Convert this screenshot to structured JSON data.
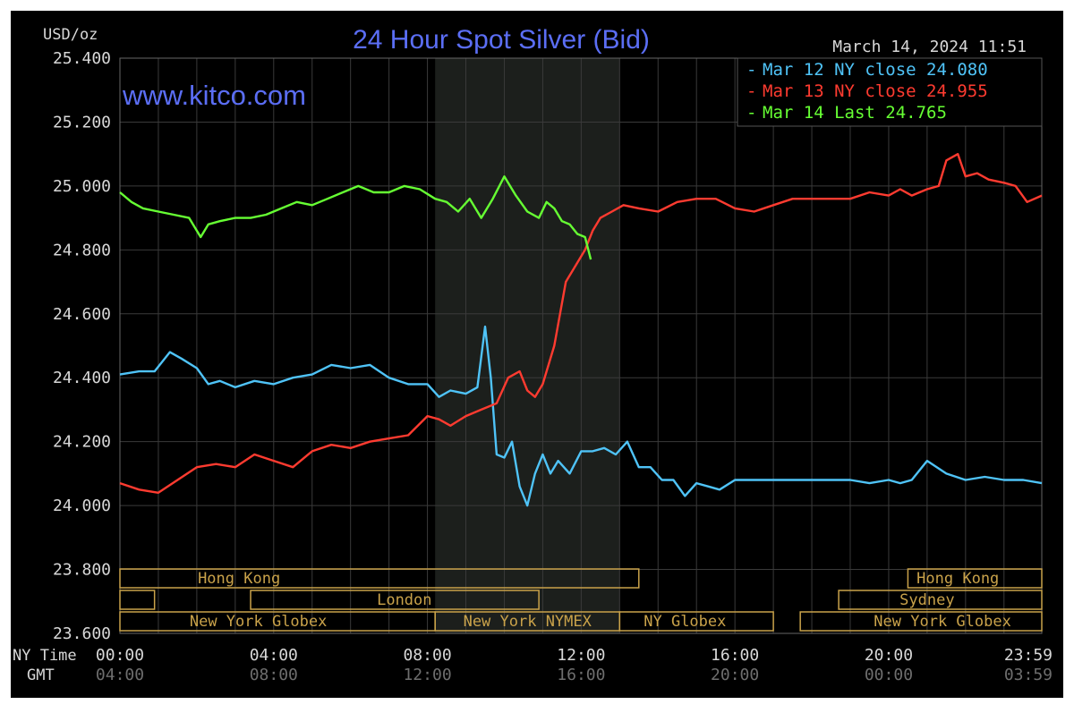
{
  "chart_data": {
    "type": "line",
    "title": "24 Hour Spot Silver (Bid)",
    "watermark": "www.kitco.com",
    "date_time": "March 14, 2024 11:51",
    "ylabel": "USD/oz",
    "ylim": [
      23.6,
      25.4
    ],
    "y_ticks": [
      "25.400",
      "25.200",
      "25.000",
      "24.800",
      "24.600",
      "24.400",
      "24.200",
      "24.000",
      "23.800",
      "23.600"
    ],
    "y_tick_values": [
      25.4,
      25.2,
      25.0,
      24.8,
      24.6,
      24.4,
      24.2,
      24.0,
      23.8,
      23.6
    ],
    "x_row_labels": {
      "ny": "NY Time",
      "gmt": "GMT"
    },
    "x_ticks_ny": [
      "00:00",
      "04:00",
      "08:00",
      "12:00",
      "16:00",
      "20:00",
      "23:59"
    ],
    "x_ticks_gmt": [
      "04:00",
      "08:00",
      "12:00",
      "16:00",
      "20:00",
      "00:00",
      "03:59"
    ],
    "x_tick_hours": [
      0,
      4,
      8,
      12,
      16,
      20,
      23.983
    ],
    "xlim_hours": [
      0,
      23.983
    ],
    "grid": true,
    "legend_position": "top-right",
    "colors": {
      "mar12": "#4fc3f7",
      "mar13": "#ff3b30",
      "mar14": "#66ff33",
      "title": "#5b6ef5",
      "text": "#d8d8d8",
      "session": "#c9a24a"
    },
    "series": [
      {
        "name": "Mar 12 NY close 24.080",
        "color": "#4fc3f7",
        "x": [
          0,
          0.5,
          0.9,
          1.3,
          1.6,
          2.0,
          2.3,
          2.6,
          3.0,
          3.5,
          4.0,
          4.5,
          5.0,
          5.5,
          6.0,
          6.5,
          7.0,
          7.5,
          8.0,
          8.3,
          8.6,
          9.0,
          9.3,
          9.5,
          9.65,
          9.8,
          10.0,
          10.2,
          10.4,
          10.6,
          10.8,
          11.0,
          11.2,
          11.4,
          11.7,
          12.0,
          12.3,
          12.6,
          12.9,
          13.2,
          13.5,
          13.8,
          14.1,
          14.4,
          14.7,
          15.0,
          15.3,
          15.6,
          16.0,
          16.5,
          17.0,
          17.5,
          18.0,
          18.5,
          19.0,
          19.5,
          20.0,
          20.3,
          20.6,
          21.0,
          21.5,
          22.0,
          22.5,
          23.0,
          23.5,
          23.983
        ],
        "y": [
          24.41,
          24.42,
          24.42,
          24.48,
          24.46,
          24.43,
          24.38,
          24.39,
          24.37,
          24.39,
          24.38,
          24.4,
          24.41,
          24.44,
          24.43,
          24.44,
          24.4,
          24.38,
          24.38,
          24.34,
          24.36,
          24.35,
          24.37,
          24.56,
          24.4,
          24.16,
          24.15,
          24.2,
          24.06,
          24.0,
          24.1,
          24.16,
          24.1,
          24.14,
          24.1,
          24.17,
          24.17,
          24.18,
          24.16,
          24.2,
          24.12,
          24.12,
          24.08,
          24.08,
          24.03,
          24.07,
          24.06,
          24.05,
          24.08,
          24.08,
          24.08,
          24.08,
          24.08,
          24.08,
          24.08,
          24.07,
          24.08,
          24.07,
          24.08,
          24.14,
          24.1,
          24.08,
          24.09,
          24.08,
          24.08,
          24.07
        ]
      },
      {
        "name": "Mar 13 NY close 24.955",
        "color": "#ff3b30",
        "x": [
          0,
          0.5,
          1.0,
          1.5,
          2.0,
          2.5,
          3.0,
          3.5,
          4.0,
          4.5,
          5.0,
          5.5,
          6.0,
          6.5,
          7.0,
          7.5,
          8.0,
          8.3,
          8.6,
          9.0,
          9.4,
          9.8,
          10.1,
          10.4,
          10.6,
          10.8,
          11.0,
          11.3,
          11.6,
          11.9,
          12.1,
          12.3,
          12.5,
          12.8,
          13.1,
          13.5,
          14.0,
          14.5,
          15.0,
          15.5,
          16.0,
          16.5,
          17.0,
          17.5,
          18.0,
          18.5,
          19.0,
          19.5,
          20.0,
          20.3,
          20.6,
          21.0,
          21.3,
          21.5,
          21.8,
          22.0,
          22.3,
          22.6,
          23.0,
          23.3,
          23.6,
          23.983
        ],
        "y": [
          24.07,
          24.05,
          24.04,
          24.08,
          24.12,
          24.13,
          24.12,
          24.16,
          24.14,
          24.12,
          24.17,
          24.19,
          24.18,
          24.2,
          24.21,
          24.22,
          24.28,
          24.27,
          24.25,
          24.28,
          24.3,
          24.32,
          24.4,
          24.42,
          24.36,
          24.34,
          24.38,
          24.5,
          24.7,
          24.76,
          24.8,
          24.86,
          24.9,
          24.92,
          24.94,
          24.93,
          24.92,
          24.95,
          24.96,
          24.96,
          24.93,
          24.92,
          24.94,
          24.96,
          24.96,
          24.96,
          24.96,
          24.98,
          24.97,
          24.99,
          24.97,
          24.99,
          25.0,
          25.08,
          25.1,
          25.03,
          25.04,
          25.02,
          25.01,
          25.0,
          24.95,
          24.97
        ]
      },
      {
        "name": "Mar 14 Last 24.765",
        "color": "#66ff33",
        "x": [
          0,
          0.3,
          0.6,
          1.0,
          1.4,
          1.8,
          2.0,
          2.1,
          2.3,
          2.6,
          3.0,
          3.4,
          3.8,
          4.2,
          4.6,
          5.0,
          5.4,
          5.8,
          6.2,
          6.6,
          7.0,
          7.4,
          7.8,
          8.2,
          8.5,
          8.8,
          9.1,
          9.4,
          9.7,
          10.0,
          10.3,
          10.6,
          10.9,
          11.1,
          11.3,
          11.5,
          11.7,
          11.9,
          12.1,
          12.25
        ],
        "y": [
          24.98,
          24.95,
          24.93,
          24.92,
          24.91,
          24.9,
          24.86,
          24.84,
          24.88,
          24.89,
          24.9,
          24.9,
          24.91,
          24.93,
          24.95,
          24.94,
          24.96,
          24.98,
          25.0,
          24.98,
          24.98,
          25.0,
          24.99,
          24.96,
          24.95,
          24.92,
          24.96,
          24.9,
          24.96,
          25.03,
          24.97,
          24.92,
          24.9,
          24.95,
          24.93,
          24.89,
          24.88,
          24.85,
          24.84,
          24.77
        ]
      }
    ],
    "shaded_region_hours": [
      8.2,
      13.0
    ],
    "sessions": [
      {
        "label": "Hong Kong",
        "start": 0,
        "end": 13.5,
        "row": 0,
        "show_label": true,
        "label_hour": 3.1
      },
      {
        "label": "Hong Kong",
        "start": 20.5,
        "end": 23.983,
        "row": 0,
        "show_label": true,
        "label_hour": 21.8
      },
      {
        "label": "",
        "start": 0,
        "end": 0.9,
        "row": 1,
        "show_label": false,
        "label_hour": 0
      },
      {
        "label": "London",
        "start": 3.4,
        "end": 10.9,
        "row": 1,
        "show_label": true,
        "label_hour": 7.4
      },
      {
        "label": "Sydney",
        "start": 18.7,
        "end": 23.983,
        "row": 1,
        "show_label": true,
        "label_hour": 21.0
      },
      {
        "label": "New York Globex",
        "start": 0,
        "end": 8.2,
        "row": 2,
        "show_label": true,
        "label_hour": 3.6
      },
      {
        "label": "New York NYMEX",
        "start": 8.2,
        "end": 13.0,
        "row": 2,
        "show_label": true,
        "label_hour": 10.6
      },
      {
        "label": "NY Globex",
        "start": 13.0,
        "end": 17.0,
        "row": 2,
        "show_label": true,
        "label_hour": 14.7
      },
      {
        "label": "New York Globex",
        "start": 17.7,
        "end": 23.983,
        "row": 2,
        "show_label": true,
        "label_hour": 21.4
      }
    ]
  }
}
